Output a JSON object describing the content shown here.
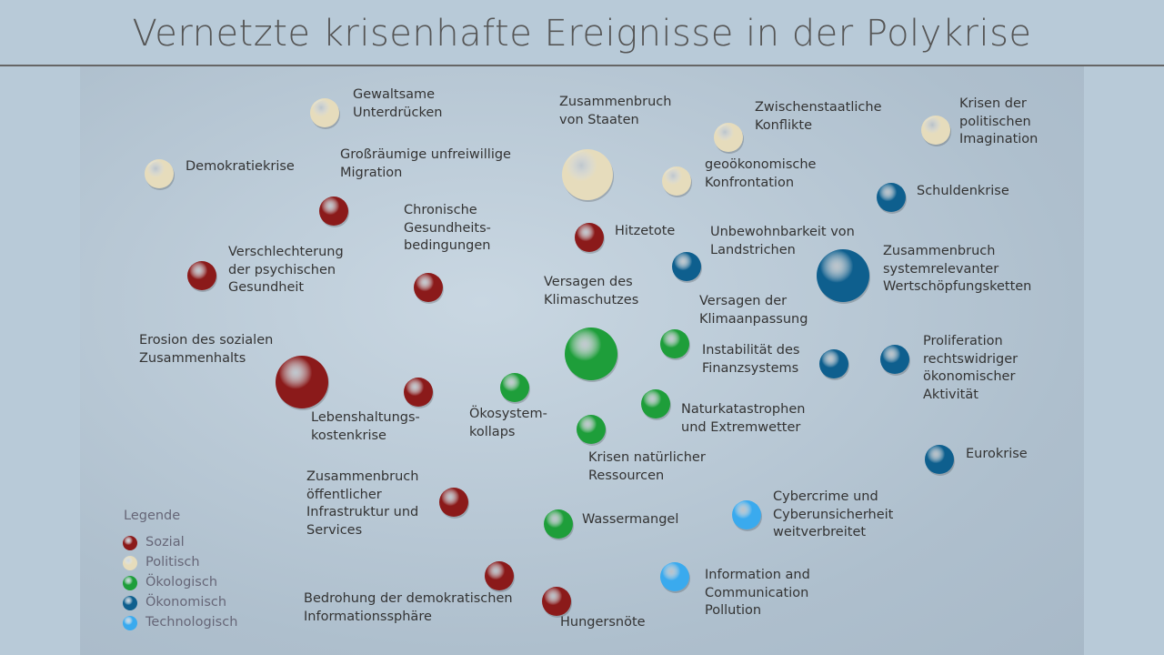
{
  "title": "Vernetzte krisenhafte Ereignisse in der Polykrise",
  "legend": {
    "title": "Legende",
    "groups": [
      {
        "name": "Sozial",
        "color": "#8b1a1a",
        "nodes": [
          "Großräumige unfreiwillige\nMigration",
          "Chronische\nGesundheits-\nbedingungen",
          "Hitzetote",
          "Verschlechterung\nder psychischen\nGesundheit",
          "Erosion des sozialen\nZusammenhalts",
          "Lebenshaltungs-\nkostenkrise",
          "Zusammenbruch\nöffentlicher\nInfrastruktur und\nServices",
          "Bedrohung der demokratischen\nInformationssphäre",
          "Hungersnöte"
        ]
      },
      {
        "name": "Politisch",
        "color": "#e6dcbc",
        "nodes": [
          "Gewaltsame\nUnterdrücken",
          "Zusammenbruch\nvon Staaten",
          "Zwischenstaatliche\nKonflikte",
          "Krisen der\npolitischen\nImagination",
          "Demokratiekrise",
          "geoökonomische\nKonfrontation"
        ]
      },
      {
        "name": "Ökologisch",
        "color": "#1e9e3a",
        "nodes": [
          "Versagen des\nKlimaschutzes",
          "Versagen der\nKlimaanpassung",
          "Ökosystem-\nkollaps",
          "Naturkatastrophen\nund Extremwetter",
          "Krisen natürlicher\nRessourcen",
          "Wassermangel"
        ]
      },
      {
        "name": "Ökonomisch",
        "color": "#0e5f8e",
        "nodes": [
          "Schuldenkrise",
          "Unbewohnbarkeit von\nLandstrichen",
          "Zusammenbruch\nsystemrelevanter\nWertschöpfungsketten",
          "Instabilität des\nFinanzsystems",
          "Proliferation\nrechtswidriger\nökonomischer\nAktivität",
          "Eurokrise"
        ]
      },
      {
        "name": "Technologisch",
        "color": "#3aaaee",
        "nodes": [
          "Cybercrime und\nCyberunsicherheit\nweitverbreitet",
          "Information and\nCommunication\nPollution"
        ]
      }
    ]
  }
}
